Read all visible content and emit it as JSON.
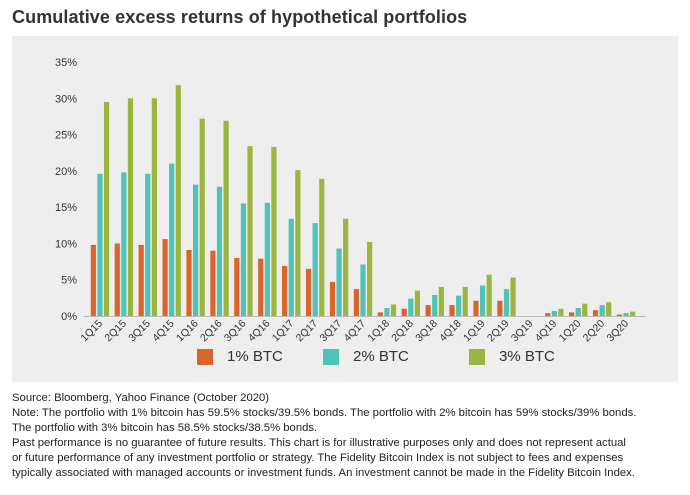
{
  "title": "Cumulative excess returns of hypothetical portfolios",
  "chart_data": {
    "type": "bar",
    "categories": [
      "1Q15",
      "2Q15",
      "3Q15",
      "4Q15",
      "1Q16",
      "2Q16",
      "3Q16",
      "4Q16",
      "1Q17",
      "2Q17",
      "3Q17",
      "4Q17",
      "1Q18",
      "2Q18",
      "3Q18",
      "4Q18",
      "1Q19",
      "2Q19",
      "3Q19",
      "4Q19",
      "1Q20",
      "2Q20",
      "3Q20"
    ],
    "series": [
      {
        "name": "1% BTC",
        "color": "#d9652b",
        "values": [
          9.8,
          10.0,
          9.8,
          10.6,
          9.1,
          9.0,
          8.0,
          7.9,
          6.9,
          6.5,
          4.7,
          3.7,
          0.5,
          1.0,
          1.5,
          1.5,
          2.1,
          2.1,
          0.0,
          0.4,
          0.5,
          0.8,
          0.2
        ]
      },
      {
        "name": "2% BTC",
        "color": "#4fc3b5",
        "values": [
          19.6,
          19.8,
          19.6,
          21.0,
          18.1,
          17.8,
          15.5,
          15.6,
          13.4,
          12.8,
          9.3,
          7.1,
          1.1,
          2.4,
          2.9,
          2.8,
          4.2,
          3.7,
          0.0,
          0.7,
          1.1,
          1.5,
          0.4
        ]
      },
      {
        "name": "3% BTC",
        "color": "#9bb53e",
        "values": [
          29.5,
          30.0,
          30.0,
          31.8,
          27.2,
          26.9,
          23.4,
          23.3,
          20.1,
          18.9,
          13.4,
          10.2,
          1.6,
          3.5,
          4.0,
          4.0,
          5.7,
          5.3,
          0.0,
          1.0,
          1.7,
          1.9,
          0.6
        ]
      }
    ],
    "yticks": [
      "0%",
      "5%",
      "10%",
      "15%",
      "20%",
      "25%",
      "30%",
      "35%"
    ],
    "ylim": [
      0,
      35
    ],
    "grid": false,
    "legend": "bottom"
  },
  "footnotes": [
    "Source: Bloomberg, Yahoo Finance (October 2020)",
    "Note: The portfolio with 1% bitcoin has 59.5% stocks/39.5% bonds. The portfolio with 2% bitcoin has 59% stocks/39% bonds.",
    "The portfolio with 3% bitcoin has 58.5% stocks/38.5% bonds.",
    "Past performance is no guarantee of future results. This chart is for illustrative purposes only and does not represent actual",
    "or future performance of any investment portfolio or strategy. The Fidelity Bitcoin Index is not subject to fees and expenses",
    "typically associated with managed accounts or investment funds. An investment cannot be made in the Fidelity Bitcoin Index."
  ]
}
